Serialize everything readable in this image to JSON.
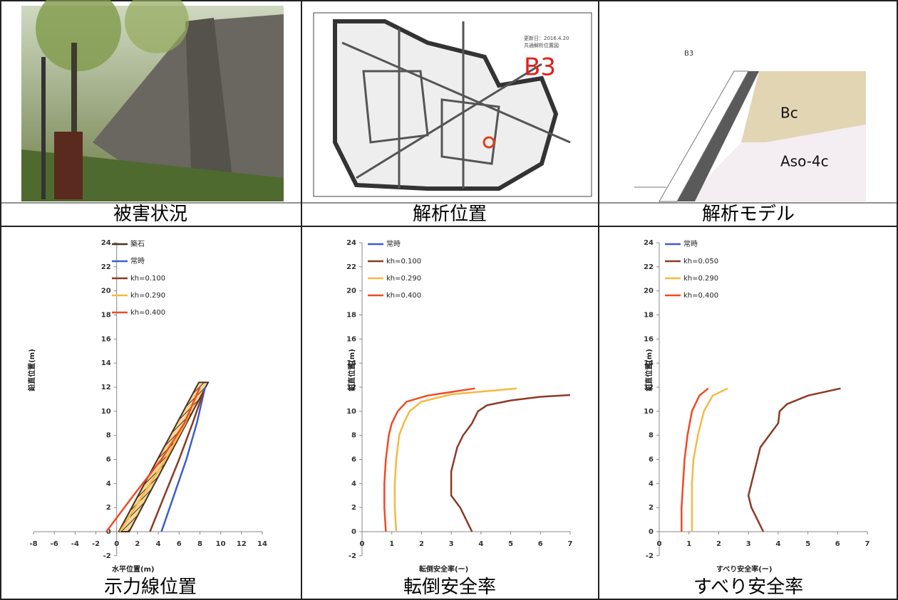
{
  "panels": {
    "photo_caption": "被害状況",
    "map_caption": "解析位置",
    "map_label": "B3",
    "map_note": [
      "更新日：2016.4.20",
      "共通解析位置図"
    ],
    "model_caption": "解析モデル",
    "model_id": "B3",
    "model_layers": [
      "Bc",
      "Aso-4c"
    ]
  },
  "chart_data": [
    {
      "type": "line",
      "title": "示力線位置",
      "xlabel": "水平位置(m)",
      "ylabel": "鉛直位置(m)",
      "xlim": [
        -8,
        14
      ],
      "xticks": [
        -8,
        -6,
        -4,
        -2,
        0,
        2,
        4,
        6,
        8,
        10,
        12,
        14
      ],
      "ylim": [
        -2,
        24
      ],
      "yticks": [
        -2,
        0,
        2,
        4,
        6,
        8,
        10,
        12,
        14,
        16,
        18,
        20,
        22,
        24
      ],
      "series": [
        {
          "name": "築石",
          "color": "#4a3222",
          "x": [
            0.2,
            1.2,
            8.8,
            7.9,
            0.2
          ],
          "y": [
            0,
            0,
            12.4,
            12.4,
            0
          ]
        },
        {
          "name": "常時",
          "color": "#3a5fc8",
          "x": [
            4.3,
            5.5,
            6.7,
            7.7,
            8.5
          ],
          "y": [
            0,
            3,
            6,
            9,
            12
          ]
        },
        {
          "name": "kh=0.100",
          "color": "#8b3a26",
          "x": [
            3.2,
            4.6,
            6.0,
            7.3,
            8.3
          ],
          "y": [
            0,
            3,
            6,
            9,
            11.5
          ]
        },
        {
          "name": "kh=0.290",
          "color": "#f5b942",
          "x": [
            0.3,
            2.5,
            4.7,
            6.6,
            8.0
          ],
          "y": [
            0,
            3,
            6,
            9,
            12
          ]
        },
        {
          "name": "kh=0.400",
          "color": "#f04a24",
          "x": [
            -1.0,
            1.6,
            4.3,
            6.5,
            8.0
          ],
          "y": [
            0,
            3,
            6,
            9,
            12
          ]
        }
      ]
    },
    {
      "type": "line",
      "title": "転倒安全率",
      "xlabel": "転倒安全率(ー)",
      "ylabel": "鉛直位置(m)",
      "xlim": [
        0,
        7
      ],
      "xticks": [
        0,
        1,
        2,
        3,
        4,
        5,
        6,
        7
      ],
      "ylim": [
        -2,
        24
      ],
      "yticks": [
        -2,
        0,
        2,
        4,
        6,
        8,
        10,
        12,
        14,
        16,
        18,
        20,
        22,
        24
      ],
      "series": [
        {
          "name": "常時",
          "color": "#3a5fc8",
          "x": [],
          "y": []
        },
        {
          "name": "kh=0.100",
          "color": "#8b3a26",
          "x": [
            3.7,
            3.5,
            3.3,
            3.0,
            3.0,
            3.0,
            3.1,
            3.2,
            3.4,
            3.7,
            3.9,
            4.2,
            5.0,
            6.0,
            7.0
          ],
          "y": [
            0,
            1,
            2,
            3,
            4,
            5,
            6,
            7,
            8,
            9,
            10,
            10.5,
            10.9,
            11.2,
            11.35
          ]
        },
        {
          "name": "kh=0.290",
          "color": "#f5b942",
          "x": [
            1.15,
            1.1,
            1.1,
            1.15,
            1.25,
            1.4,
            1.6,
            2.0,
            3.0,
            5.2
          ],
          "y": [
            0,
            2,
            4,
            6,
            8,
            9,
            10,
            10.8,
            11.4,
            11.9
          ]
        },
        {
          "name": "kh=0.400",
          "color": "#f04a24",
          "x": [
            0.8,
            0.75,
            0.75,
            0.8,
            0.9,
            1.0,
            1.2,
            1.5,
            2.2,
            3.8
          ],
          "y": [
            0,
            2,
            4,
            6,
            8,
            9,
            10,
            10.8,
            11.3,
            11.9
          ]
        }
      ]
    },
    {
      "type": "line",
      "title": "すべり安全率",
      "xlabel": "すべり安全率(ー)",
      "ylabel": "鉛直位置(m)",
      "xlim": [
        0,
        7
      ],
      "xticks": [
        0,
        1,
        2,
        3,
        4,
        5,
        6,
        7
      ],
      "ylim": [
        -2,
        24
      ],
      "yticks": [
        -2,
        0,
        2,
        4,
        6,
        8,
        10,
        12,
        14,
        16,
        18,
        20,
        22,
        24
      ],
      "series": [
        {
          "name": "常時",
          "color": "#3a5fc8",
          "x": [],
          "y": []
        },
        {
          "name": "kh=0.050",
          "color": "#8b3a26",
          "x": [
            3.5,
            3.3,
            3.1,
            3.0,
            3.1,
            3.2,
            3.3,
            3.4,
            3.7,
            4.0,
            4.05,
            4.3,
            5.0,
            6.1
          ],
          "y": [
            0,
            1,
            2,
            3,
            4,
            5,
            6,
            7,
            8,
            9,
            10,
            10.6,
            11.3,
            11.9
          ]
        },
        {
          "name": "kh=0.290",
          "color": "#f5b942",
          "x": [
            1.1,
            1.1,
            1.1,
            1.15,
            1.3,
            1.5,
            1.8,
            2.3
          ],
          "y": [
            0,
            2,
            4,
            6,
            8,
            10,
            11.3,
            11.9
          ]
        },
        {
          "name": "kh=0.400",
          "color": "#f04a24",
          "x": [
            0.75,
            0.75,
            0.8,
            0.85,
            0.95,
            1.1,
            1.35,
            1.65
          ],
          "y": [
            0,
            2,
            4,
            6,
            8,
            10,
            11.3,
            11.9
          ]
        }
      ]
    }
  ]
}
